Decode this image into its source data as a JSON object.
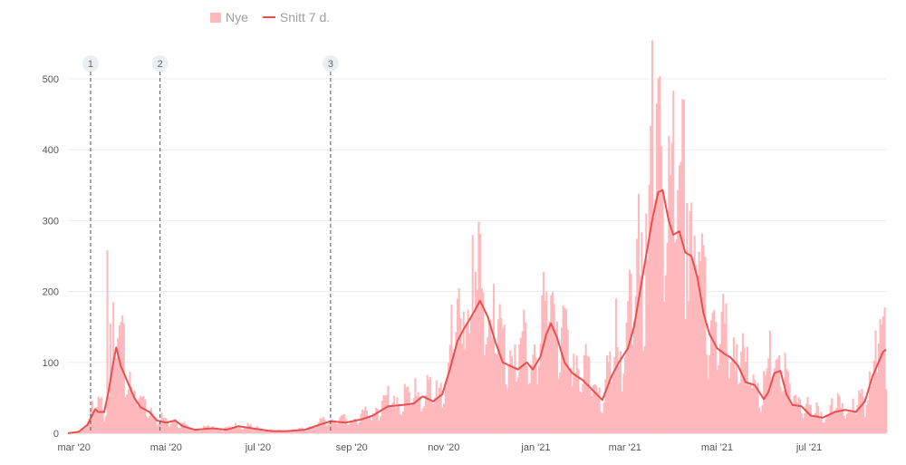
{
  "chart_data": {
    "type": "bar",
    "legend_position": "top-left",
    "grid": true,
    "ylim": [
      0,
      500
    ],
    "yticks": [
      0,
      100,
      200,
      300,
      400,
      500
    ],
    "x_start": "2020-02-26",
    "x_end": "2021-08-21",
    "xticks": [
      {
        "date": "2020-03-01",
        "label": "mar '20"
      },
      {
        "date": "2020-05-01",
        "label": "mai '20"
      },
      {
        "date": "2020-07-01",
        "label": "jul '20"
      },
      {
        "date": "2020-09-01",
        "label": "sep '20"
      },
      {
        "date": "2020-11-01",
        "label": "nov '20"
      },
      {
        "date": "2021-01-01",
        "label": "jan '21"
      },
      {
        "date": "2021-03-01",
        "label": "mar '21"
      },
      {
        "date": "2021-05-01",
        "label": "mai '21"
      },
      {
        "date": "2021-07-01",
        "label": "jul '21"
      }
    ],
    "markers": [
      {
        "label": "1",
        "date": "2020-03-12"
      },
      {
        "label": "2",
        "date": "2020-04-27"
      },
      {
        "label": "3",
        "date": "2020-08-18"
      }
    ],
    "series": [
      {
        "name": "Nye",
        "type": "bar",
        "color": "#ffb9bd"
      },
      {
        "name": "Snitt 7 d.",
        "type": "line",
        "color": "#ea4e4e"
      }
    ],
    "average_curve": [
      [
        "2020-02-26",
        0
      ],
      [
        "2020-03-04",
        2
      ],
      [
        "2020-03-10",
        12
      ],
      [
        "2020-03-13",
        25
      ],
      [
        "2020-03-15",
        34
      ],
      [
        "2020-03-17",
        30
      ],
      [
        "2020-03-21",
        30
      ],
      [
        "2020-03-24",
        60
      ],
      [
        "2020-03-27",
        100
      ],
      [
        "2020-03-29",
        121
      ],
      [
        "2020-04-01",
        95
      ],
      [
        "2020-04-05",
        75
      ],
      [
        "2020-04-10",
        50
      ],
      [
        "2020-04-14",
        37
      ],
      [
        "2020-04-20",
        30
      ],
      [
        "2020-04-25",
        18
      ],
      [
        "2020-05-01",
        15
      ],
      [
        "2020-05-07",
        18
      ],
      [
        "2020-05-12",
        10
      ],
      [
        "2020-05-20",
        5
      ],
      [
        "2020-06-01",
        7
      ],
      [
        "2020-06-10",
        5
      ],
      [
        "2020-06-18",
        10
      ],
      [
        "2020-06-30",
        6
      ],
      [
        "2020-07-10",
        3
      ],
      [
        "2020-07-20",
        3
      ],
      [
        "2020-08-01",
        5
      ],
      [
        "2020-08-12",
        13
      ],
      [
        "2020-08-18",
        17
      ],
      [
        "2020-08-28",
        15
      ],
      [
        "2020-09-08",
        20
      ],
      [
        "2020-09-15",
        25
      ],
      [
        "2020-09-25",
        38
      ],
      [
        "2020-10-05",
        40
      ],
      [
        "2020-10-12",
        42
      ],
      [
        "2020-10-18",
        52
      ],
      [
        "2020-10-25",
        45
      ],
      [
        "2020-10-31",
        55
      ],
      [
        "2020-11-05",
        90
      ],
      [
        "2020-11-10",
        130
      ],
      [
        "2020-11-15",
        150
      ],
      [
        "2020-11-18",
        160
      ],
      [
        "2020-11-22",
        175
      ],
      [
        "2020-11-25",
        187
      ],
      [
        "2020-11-30",
        165
      ],
      [
        "2020-12-05",
        130
      ],
      [
        "2020-12-10",
        100
      ],
      [
        "2020-12-15",
        95
      ],
      [
        "2020-12-20",
        90
      ],
      [
        "2020-12-26",
        100
      ],
      [
        "2020-12-30",
        90
      ],
      [
        "2021-01-04",
        108
      ],
      [
        "2021-01-08",
        140
      ],
      [
        "2021-01-11",
        155
      ],
      [
        "2021-01-15",
        135
      ],
      [
        "2021-01-20",
        100
      ],
      [
        "2021-01-25",
        85
      ],
      [
        "2021-02-01",
        75
      ],
      [
        "2021-02-08",
        60
      ],
      [
        "2021-02-14",
        47
      ],
      [
        "2021-02-20",
        80
      ],
      [
        "2021-02-25",
        100
      ],
      [
        "2021-03-03",
        120
      ],
      [
        "2021-03-07",
        150
      ],
      [
        "2021-03-11",
        200
      ],
      [
        "2021-03-15",
        250
      ],
      [
        "2021-03-19",
        300
      ],
      [
        "2021-03-23",
        340
      ],
      [
        "2021-03-26",
        343
      ],
      [
        "2021-03-30",
        300
      ],
      [
        "2021-04-02",
        280
      ],
      [
        "2021-04-06",
        285
      ],
      [
        "2021-04-10",
        255
      ],
      [
        "2021-04-14",
        250
      ],
      [
        "2021-04-18",
        220
      ],
      [
        "2021-04-22",
        170
      ],
      [
        "2021-04-26",
        140
      ],
      [
        "2021-05-01",
        120
      ],
      [
        "2021-05-06",
        112
      ],
      [
        "2021-05-10",
        107
      ],
      [
        "2021-05-15",
        95
      ],
      [
        "2021-05-20",
        72
      ],
      [
        "2021-05-26",
        68
      ],
      [
        "2021-06-01",
        48
      ],
      [
        "2021-06-04",
        58
      ],
      [
        "2021-06-08",
        85
      ],
      [
        "2021-06-12",
        88
      ],
      [
        "2021-06-16",
        55
      ],
      [
        "2021-06-20",
        40
      ],
      [
        "2021-06-26",
        38
      ],
      [
        "2021-07-02",
        25
      ],
      [
        "2021-07-10",
        22
      ],
      [
        "2021-07-18",
        30
      ],
      [
        "2021-07-25",
        33
      ],
      [
        "2021-08-01",
        30
      ],
      [
        "2021-08-07",
        45
      ],
      [
        "2021-08-12",
        80
      ],
      [
        "2021-08-16",
        100
      ],
      [
        "2021-08-19",
        115
      ],
      [
        "2021-08-21",
        118
      ]
    ],
    "daily_value_spikes": [
      [
        "2020-03-23",
        258
      ],
      [
        "2020-03-25",
        155
      ],
      [
        "2020-03-28",
        110
      ],
      [
        "2020-11-22",
        228
      ],
      [
        "2020-11-26",
        205
      ],
      [
        "2020-11-14",
        172
      ],
      [
        "2021-01-08",
        200
      ],
      [
        "2021-01-11",
        195
      ],
      [
        "2021-02-23",
        190
      ],
      [
        "2021-03-15",
        310
      ],
      [
        "2021-03-22",
        465
      ],
      [
        "2021-03-25",
        405
      ],
      [
        "2021-03-30",
        420
      ],
      [
        "2021-04-01",
        410
      ],
      [
        "2021-04-06",
        378
      ],
      [
        "2021-04-11",
        325
      ],
      [
        "2021-04-20",
        243
      ],
      [
        "2021-06-05",
        145
      ],
      [
        "2021-08-14",
        145
      ],
      [
        "2021-08-19",
        165
      ]
    ]
  }
}
